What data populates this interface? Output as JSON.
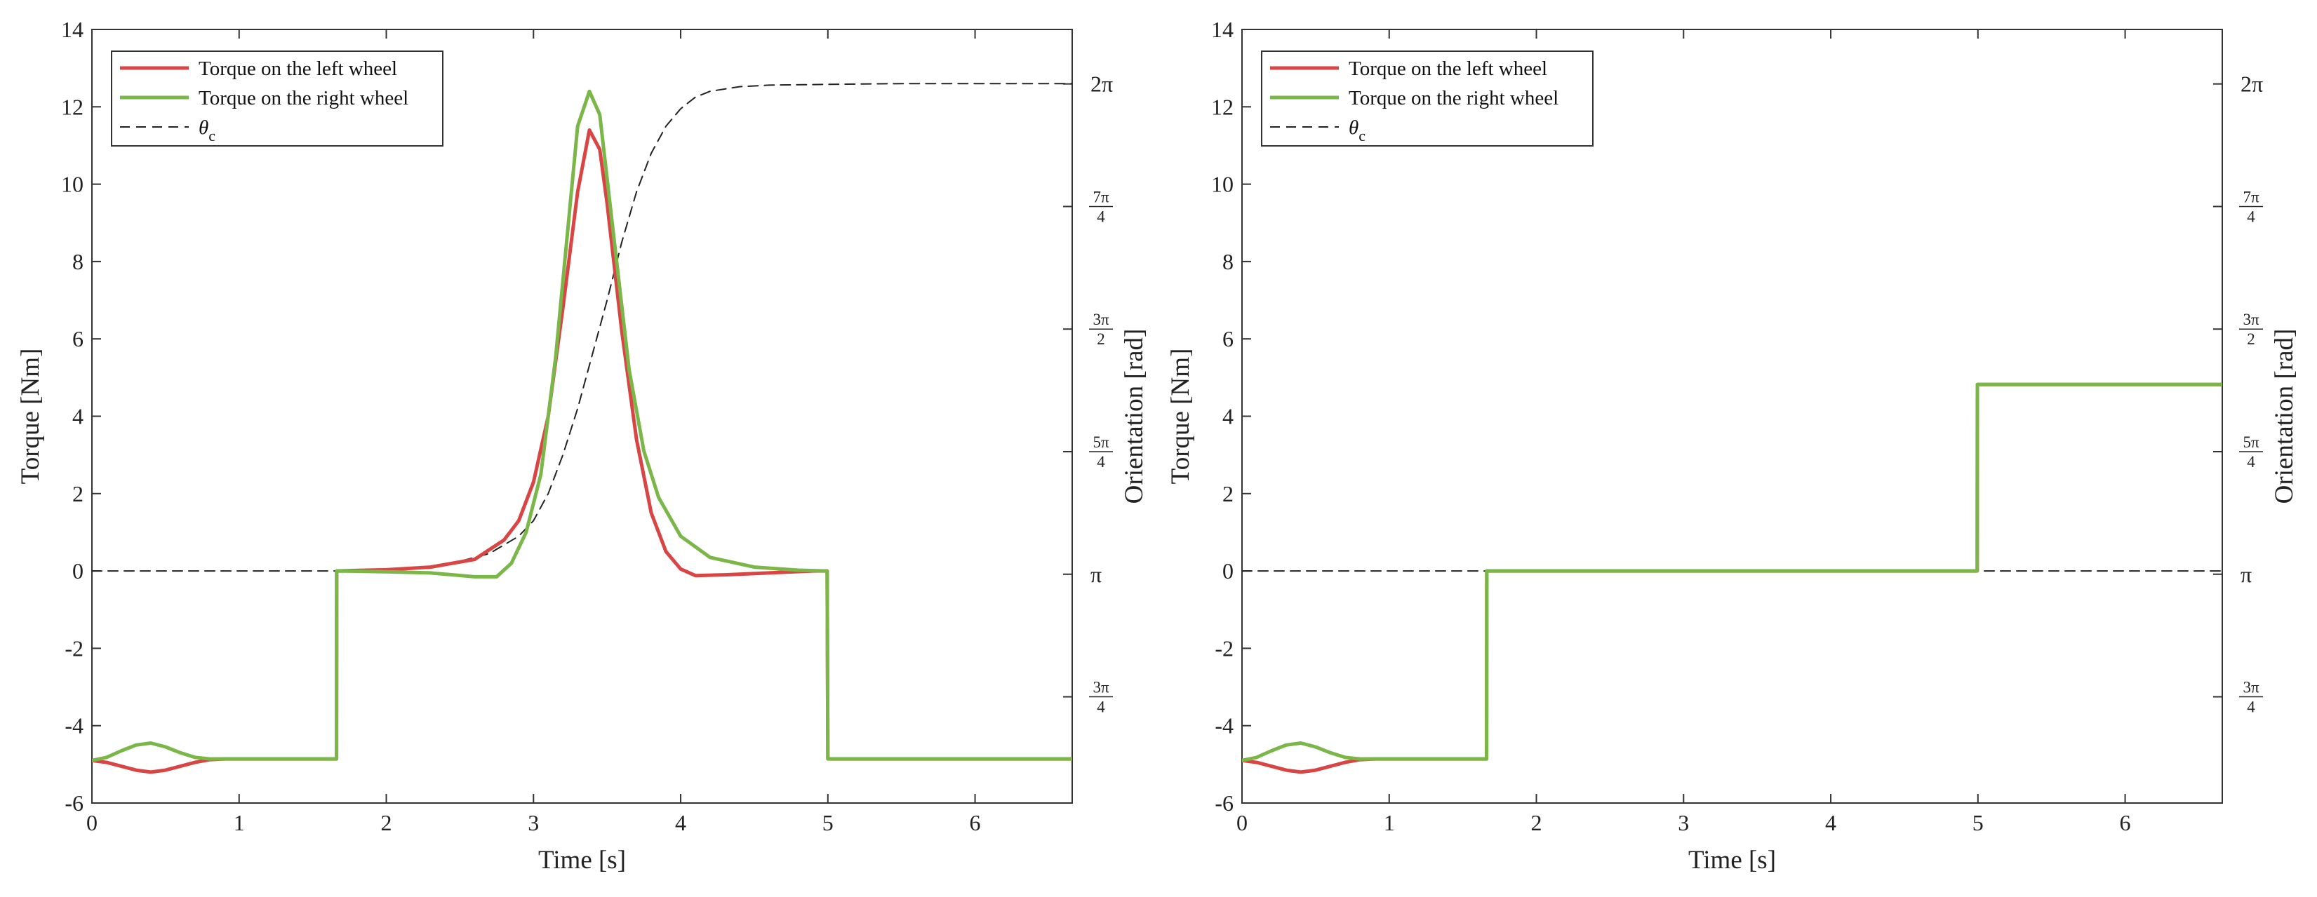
{
  "colors": {
    "left": "#d94545",
    "right": "#7ab648",
    "theta": "#222222",
    "axis": "#333333"
  },
  "chart_data": [
    {
      "type": "line",
      "xlabel": "Time [s]",
      "ylabel": "Torque [Nm]",
      "ylabel_right": "Orientation [rad]",
      "xlim": [
        0,
        6.66
      ],
      "ylim": [
        -6,
        14
      ],
      "xticks": [
        0,
        1,
        2,
        3,
        4,
        5,
        6
      ],
      "yticks": [
        -6,
        -4,
        -2,
        0,
        2,
        4,
        6,
        8,
        10,
        12,
        14
      ],
      "right_ticks": [
        {
          "label": "2π",
          "num": "",
          "den": "",
          "value": 6.2832
        },
        {
          "label": "7π/4",
          "num": "7π",
          "den": "4",
          "value": 5.4978
        },
        {
          "label": "3π/2",
          "num": "3π",
          "den": "2",
          "value": 4.7124
        },
        {
          "label": "5π/4",
          "num": "5π",
          "den": "4",
          "value": 3.927
        },
        {
          "label": "π",
          "num": "",
          "den": "",
          "value": 3.1416
        },
        {
          "label": "3π/4",
          "num": "3π",
          "den": "4",
          "value": 2.3562
        }
      ],
      "right_ylim": [
        1.6755,
        6.6323
      ],
      "legend_position": "top-left",
      "series": [
        {
          "name": "Torque on the left wheel",
          "style": "solid",
          "color": "#d94545",
          "x": [
            0,
            0.1,
            0.2,
            0.3,
            0.4,
            0.5,
            0.6,
            0.7,
            0.8,
            0.9,
            1.0,
            1.65,
            1.662,
            1.663,
            2.0,
            2.3,
            2.6,
            2.8,
            2.9,
            3.0,
            3.1,
            3.2,
            3.3,
            3.38,
            3.45,
            3.5,
            3.6,
            3.7,
            3.8,
            3.9,
            4.0,
            4.1,
            4.3,
            4.6,
            4.9,
            4.98,
            4.995,
            5.0,
            5.5,
            6.0,
            6.66
          ],
          "y": [
            -4.9,
            -4.95,
            -5.05,
            -5.15,
            -5.2,
            -5.15,
            -5.05,
            -4.95,
            -4.88,
            -4.86,
            -4.86,
            -4.86,
            -4.86,
            0.0,
            0.03,
            0.1,
            0.3,
            0.8,
            1.3,
            2.3,
            4.0,
            6.8,
            9.8,
            11.4,
            10.9,
            9.5,
            6.2,
            3.4,
            1.5,
            0.5,
            0.05,
            -0.12,
            -0.1,
            -0.05,
            0.0,
            0.0,
            0.0,
            -4.86,
            -4.86,
            -4.86,
            -4.86
          ]
        },
        {
          "name": "Torque on the right wheel",
          "style": "solid",
          "color": "#7ab648",
          "x": [
            0,
            0.1,
            0.2,
            0.3,
            0.4,
            0.5,
            0.6,
            0.7,
            0.8,
            0.9,
            1.0,
            1.65,
            1.662,
            1.663,
            2.0,
            2.3,
            2.6,
            2.75,
            2.85,
            2.95,
            3.05,
            3.15,
            3.25,
            3.3,
            3.38,
            3.45,
            3.55,
            3.65,
            3.75,
            3.85,
            4.0,
            4.2,
            4.5,
            4.8,
            4.98,
            4.995,
            5.0,
            5.5,
            6.0,
            6.66
          ],
          "y": [
            -4.9,
            -4.82,
            -4.65,
            -4.5,
            -4.45,
            -4.55,
            -4.7,
            -4.82,
            -4.86,
            -4.86,
            -4.86,
            -4.86,
            -4.86,
            0.0,
            -0.02,
            -0.05,
            -0.15,
            -0.15,
            0.2,
            1.0,
            2.5,
            5.5,
            9.5,
            11.5,
            12.4,
            11.8,
            8.5,
            5.2,
            3.1,
            1.9,
            0.9,
            0.35,
            0.1,
            0.02,
            0.0,
            0.0,
            -4.86,
            -4.86,
            -4.86,
            -4.86
          ]
        },
        {
          "name": "θc",
          "style": "dashed",
          "color": "#222222",
          "x": [
            0,
            1.662,
            2.0,
            2.4,
            2.7,
            2.9,
            3.0,
            3.1,
            3.2,
            3.3,
            3.4,
            3.5,
            3.6,
            3.7,
            3.8,
            3.9,
            4.0,
            4.1,
            4.2,
            4.4,
            4.6,
            5.0,
            5.5,
            6.0,
            6.66
          ],
          "y": [
            0.0,
            0.0,
            0.03,
            0.15,
            0.45,
            0.9,
            1.3,
            2.0,
            3.0,
            4.2,
            5.6,
            7.0,
            8.5,
            9.8,
            10.8,
            11.5,
            11.95,
            12.25,
            12.4,
            12.52,
            12.56,
            12.58,
            12.6,
            12.6,
            12.6
          ]
        }
      ]
    },
    {
      "type": "line",
      "xlabel": "Time [s]",
      "ylabel": "Torque [Nm]",
      "ylabel_right": "Orientation [rad]",
      "xlim": [
        0,
        6.66
      ],
      "ylim": [
        -6,
        14
      ],
      "xticks": [
        0,
        1,
        2,
        3,
        4,
        5,
        6
      ],
      "yticks": [
        -6,
        -4,
        -2,
        0,
        2,
        4,
        6,
        8,
        10,
        12,
        14
      ],
      "right_ticks": [
        {
          "label": "2π",
          "num": "",
          "den": "",
          "value": 6.2832
        },
        {
          "label": "7π/4",
          "num": "7π",
          "den": "4",
          "value": 5.4978
        },
        {
          "label": "3π/2",
          "num": "3π",
          "den": "2",
          "value": 4.7124
        },
        {
          "label": "5π/4",
          "num": "5π",
          "den": "4",
          "value": 3.927
        },
        {
          "label": "π",
          "num": "",
          "den": "",
          "value": 3.1416
        },
        {
          "label": "3π/4",
          "num": "3π",
          "den": "4",
          "value": 2.3562
        }
      ],
      "right_ylim": [
        1.6755,
        6.6323
      ],
      "legend_position": "top-left",
      "series": [
        {
          "name": "Torque on the left wheel",
          "style": "solid",
          "color": "#d94545",
          "x": [
            0,
            0.1,
            0.2,
            0.3,
            0.4,
            0.5,
            0.6,
            0.7,
            0.8,
            0.9,
            1.0,
            1.662,
            1.663,
            4.995,
            4.996,
            6.66
          ],
          "y": [
            -4.9,
            -4.95,
            -5.05,
            -5.15,
            -5.2,
            -5.15,
            -5.05,
            -4.95,
            -4.88,
            -4.86,
            -4.86,
            -4.86,
            0.0,
            0.0,
            4.82,
            4.82
          ]
        },
        {
          "name": "Torque on the right wheel",
          "style": "solid",
          "color": "#7ab648",
          "x": [
            0,
            0.1,
            0.2,
            0.3,
            0.4,
            0.5,
            0.6,
            0.7,
            0.8,
            0.9,
            1.0,
            1.662,
            1.663,
            4.995,
            4.996,
            6.66
          ],
          "y": [
            -4.9,
            -4.82,
            -4.65,
            -4.5,
            -4.45,
            -4.55,
            -4.7,
            -4.82,
            -4.86,
            -4.86,
            -4.86,
            -4.86,
            0.0,
            0.0,
            4.82,
            4.82
          ]
        },
        {
          "name": "θc",
          "style": "dashed",
          "color": "#222222",
          "x": [
            0,
            6.66
          ],
          "y": [
            0.0,
            0.0
          ]
        }
      ]
    }
  ]
}
